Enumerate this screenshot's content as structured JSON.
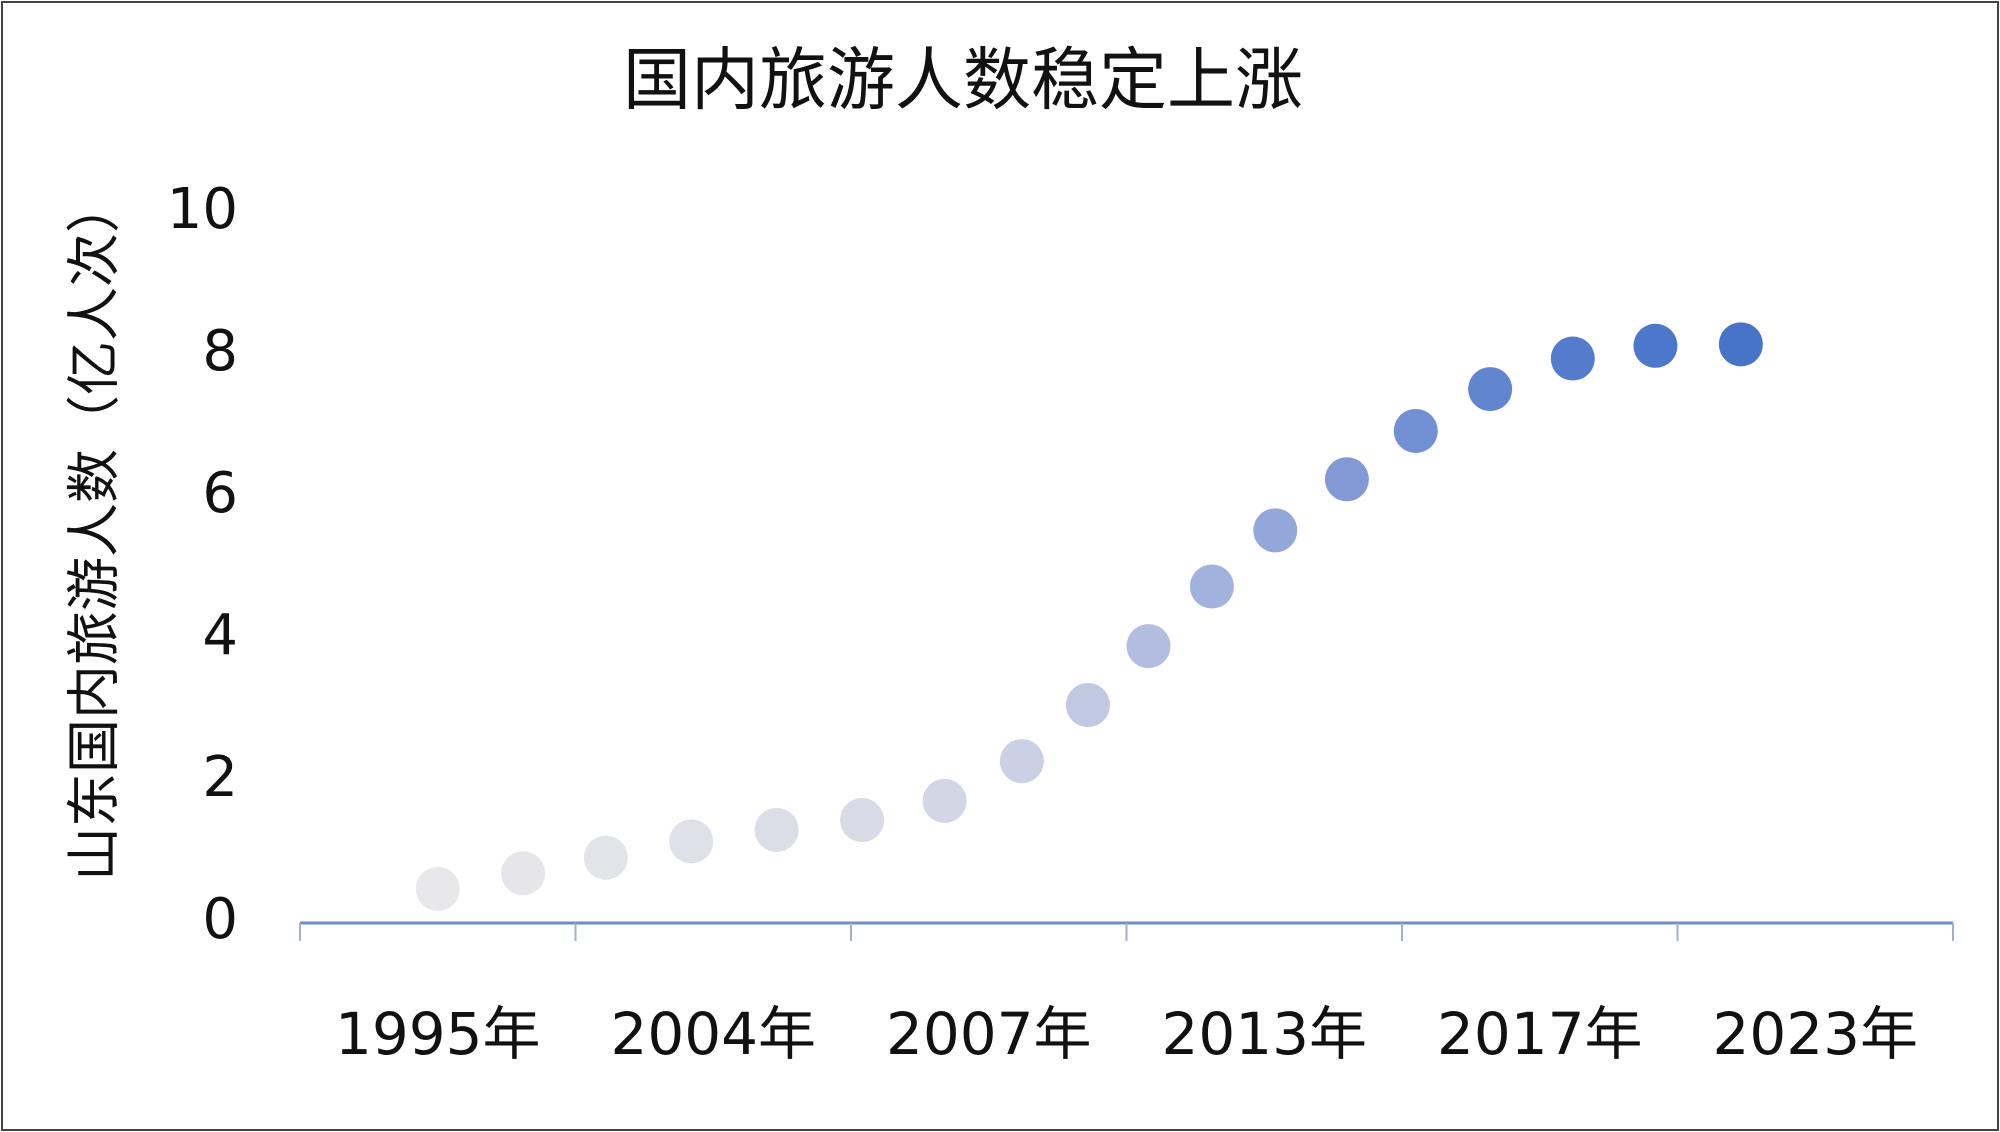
{
  "chart_data": {
    "type": "scatter",
    "title": "国内旅游人数稳定上涨",
    "y_label": "山东国内旅游人数（亿人次）",
    "categories": [
      "1995年",
      "2004年",
      "2007年",
      "2013年",
      "2017年",
      "2023年"
    ],
    "xlim": [
      0,
      6
    ],
    "x": [
      0.5,
      0.81,
      1.11,
      1.42,
      1.73,
      2.04,
      2.34,
      2.62,
      2.86,
      3.08,
      3.31,
      3.54,
      3.8,
      4.05,
      4.32,
      4.62,
      4.92,
      5.23
    ],
    "values": [
      0.48,
      0.7,
      0.92,
      1.15,
      1.31,
      1.45,
      1.72,
      2.28,
      3.07,
      3.9,
      4.74,
      5.53,
      6.25,
      6.93,
      7.52,
      7.95,
      8.13,
      8.15
    ],
    "colors": [
      "#e8e8eb",
      "#e6e6ea",
      "#e3e4e9",
      "#e0e1e8",
      "#dcdee7",
      "#d8dbe6",
      "#d2d6e5",
      "#cbd1e4",
      "#c0c8e2",
      "#b2bde0",
      "#a2b2dd",
      "#94a7da",
      "#8299d6",
      "#7290d4",
      "#6285d0",
      "#557bcc",
      "#4d77ca",
      "#4773c8"
    ],
    "ylim": [
      0,
      10
    ],
    "yticks": [
      0,
      2,
      4,
      6,
      8,
      10
    ],
    "grid": false
  }
}
